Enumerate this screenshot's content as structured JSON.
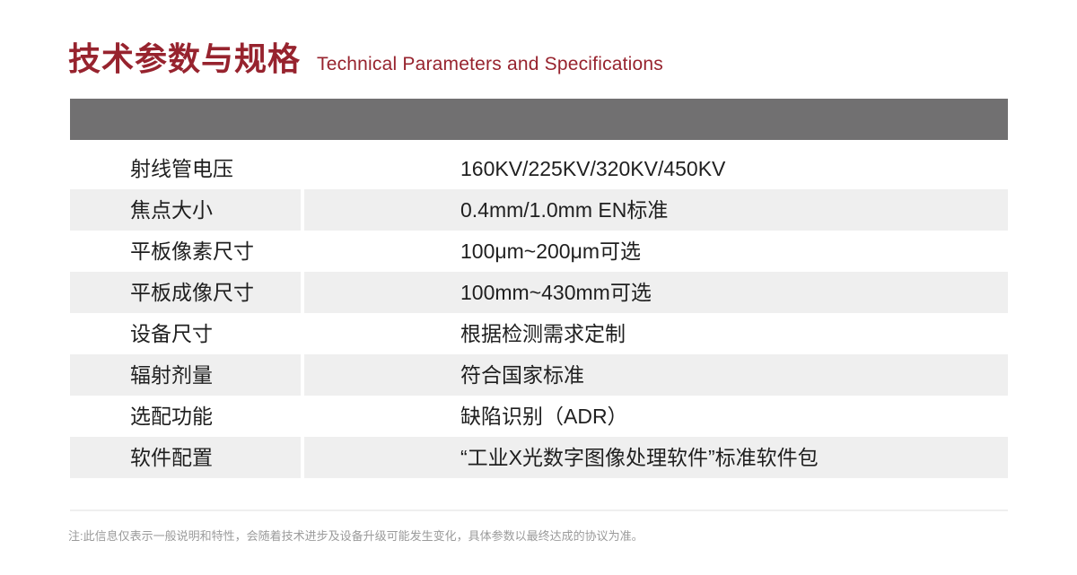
{
  "page": {
    "title_cn": "技术参数与规格",
    "title_en": "Technical Parameters and Specifications",
    "note": "注:此信息仅表示一般说明和特性，会随着技术进步及设备升级可能发生变化，具体参数以最终达成的协议为准。"
  },
  "colors": {
    "accent_red": "#97232e",
    "header_bar": "#717071",
    "row_alt": "#efefef",
    "table_text": "#1f1f1f",
    "note_text": "#9b9b9b"
  },
  "table": {
    "rows": [
      {
        "label": "射线管电压",
        "value": "160KV/225KV/320KV/450KV"
      },
      {
        "label": "焦点大小",
        "value": "0.4mm/1.0mm EN标准"
      },
      {
        "label": "平板像素尺寸",
        "value": "100μm~200μm可选"
      },
      {
        "label": "平板成像尺寸",
        "value": "100mm~430mm可选"
      },
      {
        "label": "设备尺寸",
        "value": "根据检测需求定制"
      },
      {
        "label": "辐射剂量",
        "value": "符合国家标准"
      },
      {
        "label": "选配功能",
        "value": "缺陷识别（ADR）"
      },
      {
        "label": "软件配置",
        "value": "“工业X光数字图像处理软件”标准软件包"
      }
    ]
  }
}
